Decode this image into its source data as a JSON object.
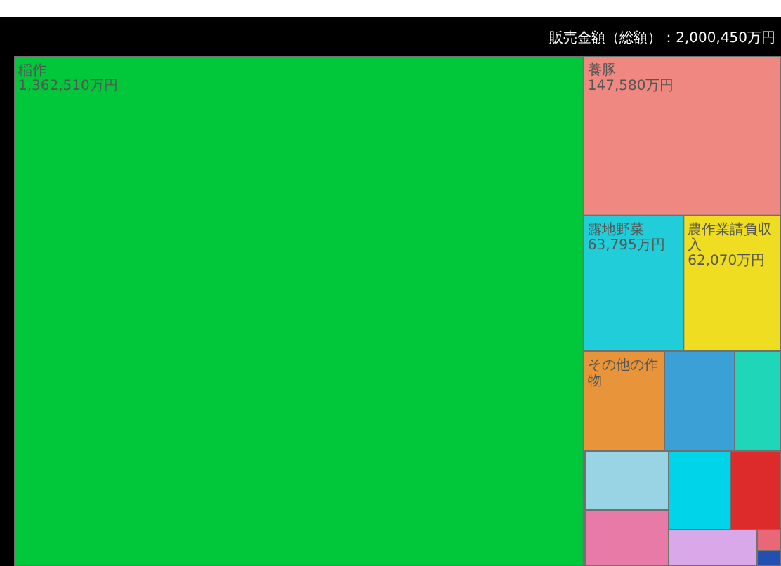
{
  "chart_data": {
    "type": "other",
    "title": "販売金額（総額）：2,000,450万円",
    "categories": [
      "稲作",
      "養豚",
      "露地野菜",
      "農作業請負収入",
      "その他の作物",
      null,
      null,
      null,
      null,
      null,
      null,
      null,
      null,
      null
    ],
    "values": [
      1362510,
      147580,
      63795,
      62070,
      null,
      null,
      null,
      null,
      null,
      null,
      null,
      null,
      null,
      null
    ],
    "value_labels": [
      "1,362,510万円",
      "147,580万円",
      "63,795万円",
      "62,070万円",
      null,
      null,
      null,
      null,
      null,
      null,
      null,
      null,
      null,
      null
    ],
    "colors": [
      "#00c83a",
      "#ee8880",
      "#20cdd8",
      "#eedd20",
      "#e8943a",
      "#3aa0d6",
      "#20d6b8",
      "#98d4e4",
      "#e87aa8",
      "#00d4e8",
      "#dd2a2a",
      "#d8a8e8",
      "#e86878",
      "#2050b0"
    ]
  }
}
